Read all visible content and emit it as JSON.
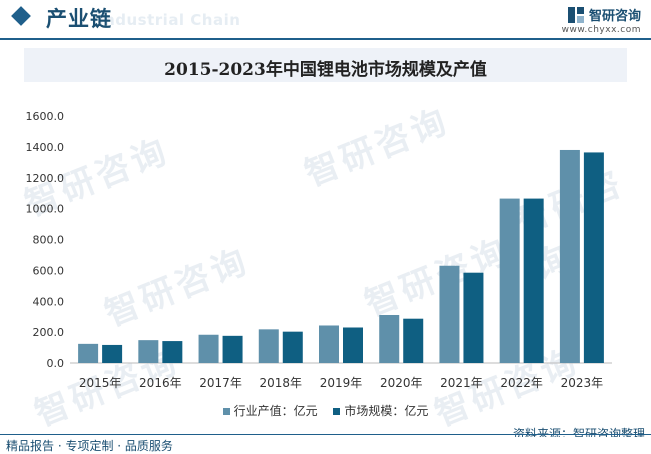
{
  "header": {
    "section_title": "产业链",
    "watermark_en": "Industrial Chain",
    "brand_name": "智研咨询",
    "brand_site": "www.chyxx.com"
  },
  "watermark_text": "智研咨询",
  "colors": {
    "series1": "#5f90aa",
    "series2": "#0f5f82",
    "accent": "#1f5f8b"
  },
  "chart_data": {
    "type": "bar",
    "title": "2015-2023年中国锂电池市场规模及产值",
    "categories": [
      "2015年",
      "2016年",
      "2017年",
      "2018年",
      "2019年",
      "2020年",
      "2021年",
      "2022年",
      "2023年"
    ],
    "series": [
      {
        "name": "行业产值：亿元",
        "values": [
          124,
          148,
          183,
          218,
          243,
          311,
          630,
          1065,
          1380
        ]
      },
      {
        "name": "市场规模：亿元",
        "values": [
          117,
          142,
          176,
          203,
          230,
          287,
          585,
          1065,
          1364
        ]
      }
    ],
    "ylim": [
      0,
      1600
    ],
    "yticks": [
      "0.0",
      "200.0",
      "400.0",
      "600.0",
      "800.0",
      "1000.0",
      "1200.0",
      "1400.0",
      "1600.0"
    ],
    "legend_position": "bottom",
    "grid": false
  },
  "source": "资料来源：智研咨询整理",
  "footer": "精品报告 · 专项定制 · 品质服务"
}
